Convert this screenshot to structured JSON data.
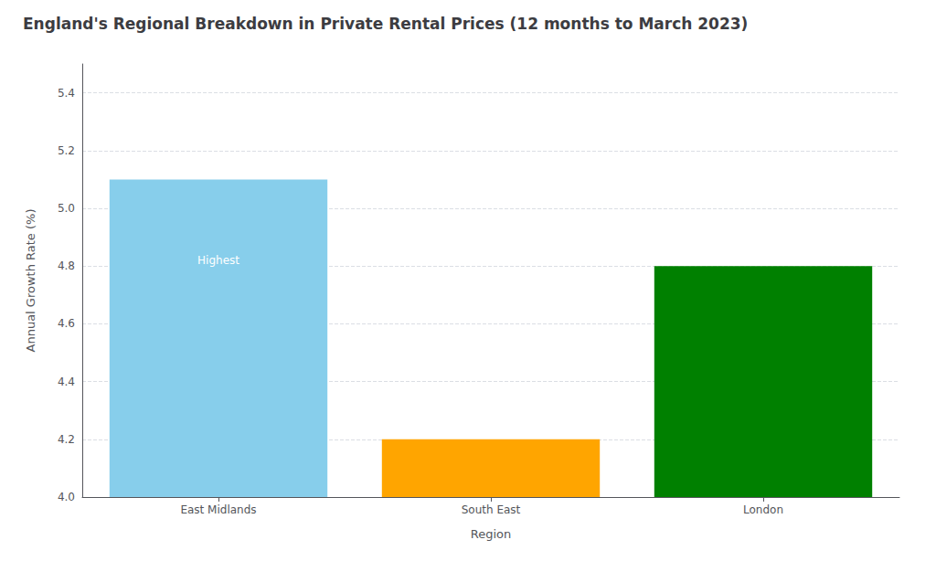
{
  "chart_data": {
    "type": "bar",
    "title": "England's Regional Breakdown in Private Rental Prices (12 months to March 2023)",
    "xlabel": "Region",
    "ylabel": "Annual Growth Rate (%)",
    "categories": [
      "East Midlands",
      "South East",
      "London"
    ],
    "values": [
      5.1,
      4.2,
      4.8
    ],
    "colors": [
      "#87CEEB",
      "#FFA500",
      "#008000"
    ],
    "ylim": [
      4.0,
      5.5
    ],
    "yticks": [
      {
        "value": 4.0,
        "label": "4.0"
      },
      4.2,
      4.4,
      4.6,
      4.8,
      {
        "value": 5.0,
        "label": "5.0"
      },
      5.2,
      5.4
    ],
    "grid": true,
    "annotations": [
      {
        "text": "Highest",
        "category": "East Midlands",
        "y": 4.82,
        "color": "white"
      }
    ]
  }
}
